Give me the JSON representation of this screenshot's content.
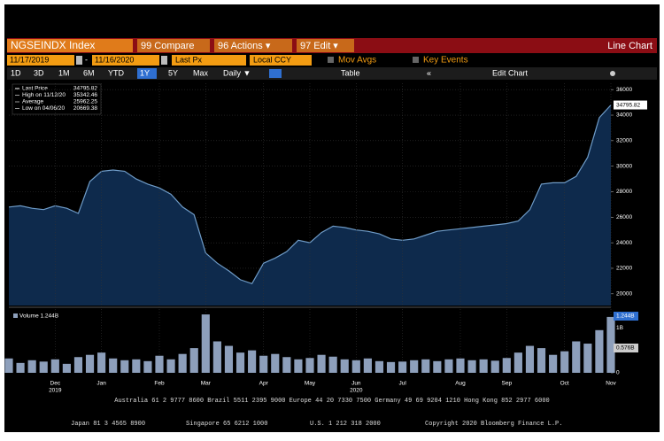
{
  "ui": {
    "security": "NGSEINDX Index",
    "menu": [
      "99 Compare",
      "96 Actions ▾",
      "97 Edit ▾"
    ],
    "view": "Line Chart",
    "start": "11/17/2019",
    "dash": "-",
    "end": "11/16/2020",
    "field": "Last Px",
    "currency": "Local CCY",
    "options": [
      "Mov Avgs",
      "Key Events"
    ],
    "periods": [
      "1D",
      "3D",
      "1M",
      "6M",
      "YTD",
      "1Y",
      "5Y",
      "Max"
    ],
    "frequency": "Daily ▼",
    "table": "Table",
    "collapse": "«",
    "edit": "Edit Chart",
    "legend": [
      {
        "label": "Last Price",
        "value": "34795.82"
      },
      {
        "label": "High on 11/12/20",
        "value": "35342.46"
      },
      {
        "label": "Average",
        "value": "25962.25"
      },
      {
        "label": "Low on 04/06/20",
        "value": "20669.38"
      }
    ],
    "price_flag": "34795.82",
    "volume_legend": "Volume 1.244B",
    "volume_flags": [
      "1.244B",
      "0.576B"
    ],
    "footer": [
      "Australia 61 2 9777 8600 Brazil 5511 2395 9000 Europe 44 20 7330 7500 Germany 49 69 9204 1210 Hong Kong 852 2977 6000",
      [
        "Japan 81 3 4565 8900",
        "Singapore 65 6212 1000",
        "U.S. 1 212 318 2000",
        "Copyright 2020 Bloomberg Finance L.P."
      ]
    ]
  },
  "chart_data": [
    {
      "type": "area",
      "color": "#0e2a4c",
      "line_color": "#6f9cc8",
      "categories": [
        null,
        null,
        null,
        null,
        "Dec",
        null,
        null,
        null,
        "Jan",
        null,
        null,
        null,
        null,
        "Feb",
        null,
        null,
        null,
        "Mar",
        null,
        null,
        null,
        null,
        "Apr",
        null,
        null,
        null,
        "May",
        null,
        null,
        null,
        "Jun",
        null,
        null,
        null,
        "Jul",
        null,
        null,
        null,
        null,
        "Aug",
        null,
        null,
        null,
        "Sep",
        null,
        null,
        null,
        null,
        "Oct",
        null,
        null,
        null,
        "Nov"
      ],
      "categories2": [
        null,
        null,
        null,
        null,
        "2019",
        null,
        null,
        null,
        null,
        null,
        null,
        null,
        null,
        null,
        null,
        null,
        null,
        null,
        null,
        null,
        null,
        null,
        null,
        null,
        null,
        null,
        null,
        null,
        null,
        null,
        "2020",
        null,
        null,
        null,
        null,
        null,
        null,
        null,
        null,
        null,
        null,
        null,
        null,
        null,
        null,
        null,
        null,
        null,
        null,
        null,
        null,
        null,
        null
      ],
      "values": [
        26800,
        26900,
        26700,
        26600,
        26900,
        26700,
        26300,
        28800,
        29600,
        29700,
        29600,
        29000,
        28600,
        28300,
        27800,
        26800,
        26200,
        23200,
        22400,
        21800,
        21100,
        20800,
        22400,
        22800,
        23300,
        24200,
        24000,
        24800,
        25300,
        25200,
        25000,
        24900,
        24700,
        24300,
        24200,
        24300,
        24600,
        24900,
        25000,
        25100,
        25200,
        25300,
        25400,
        25500,
        25700,
        26600,
        28600,
        28700,
        28700,
        29200,
        30700,
        33800,
        34795.82
      ],
      "ylim": [
        19500,
        36500
      ],
      "yticks": [
        20000,
        22000,
        24000,
        26000,
        28000,
        30000,
        32000,
        34000,
        36000
      ],
      "grid": true
    },
    {
      "type": "bar",
      "color": "#8d9fbb",
      "values": [
        0.32,
        0.22,
        0.28,
        0.25,
        0.3,
        0.2,
        0.35,
        0.4,
        0.45,
        0.32,
        0.28,
        0.3,
        0.26,
        0.38,
        0.3,
        0.42,
        0.55,
        1.3,
        0.7,
        0.6,
        0.45,
        0.5,
        0.38,
        0.42,
        0.35,
        0.3,
        0.33,
        0.4,
        0.36,
        0.3,
        0.28,
        0.32,
        0.26,
        0.24,
        0.25,
        0.28,
        0.3,
        0.26,
        0.3,
        0.32,
        0.28,
        0.3,
        0.27,
        0.33,
        0.45,
        0.6,
        0.55,
        0.4,
        0.48,
        0.7,
        0.65,
        0.95,
        1.244
      ],
      "ylim": [
        0,
        1.4
      ],
      "yticks": [
        0,
        {
          "value": 1,
          "label": "1B"
        }
      ]
    }
  ]
}
